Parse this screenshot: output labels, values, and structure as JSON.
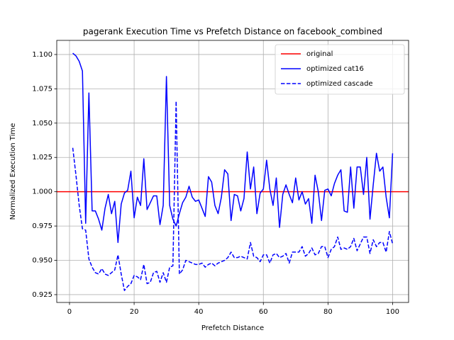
{
  "chart_data": {
    "type": "line",
    "title": "pagerank Execution Time vs Prefetch Distance on facebook_combined",
    "x_label": "Prefetch Distance",
    "y_label": "Normalized Execution Time",
    "xlim": [
      -3.95,
      104.95
    ],
    "ylim": [
      0.9193,
      1.1103
    ],
    "xticks": [
      0,
      20,
      40,
      60,
      80,
      100
    ],
    "yticks": [
      0.925,
      {
        "value": 0.95,
        "label": "0.950"
      },
      0.975,
      {
        "value": 1.0,
        "label": "1.000"
      },
      1.025,
      {
        "value": 1.05,
        "label": "1.050"
      },
      1.075,
      {
        "value": 1.1,
        "label": "1.100"
      }
    ],
    "grid": true,
    "legend": "upper right",
    "x": [
      1,
      2,
      3,
      4,
      5,
      6,
      7,
      8,
      9,
      10,
      11,
      12,
      13,
      14,
      15,
      16,
      17,
      18,
      19,
      20,
      21,
      22,
      23,
      24,
      25,
      26,
      27,
      28,
      29,
      30,
      31,
      32,
      33,
      34,
      35,
      36,
      37,
      38,
      39,
      40,
      41,
      42,
      43,
      44,
      45,
      46,
      47,
      48,
      49,
      50,
      51,
      52,
      53,
      54,
      55,
      56,
      57,
      58,
      59,
      60,
      61,
      62,
      63,
      64,
      65,
      66,
      67,
      68,
      69,
      70,
      71,
      72,
      73,
      74,
      75,
      76,
      77,
      78,
      79,
      80,
      81,
      82,
      83,
      84,
      85,
      86,
      87,
      88,
      89,
      90,
      91,
      92,
      93,
      94,
      95,
      96,
      97,
      98,
      99,
      100
    ],
    "series": [
      {
        "name": "original",
        "color": "#ff0000",
        "axhline": 1.0
      },
      {
        "name": "optimized cat16",
        "color": "#0000ff",
        "dash": false,
        "values": [
          1.101,
          1.099,
          1.095,
          1.088,
          0.977,
          1.072,
          0.986,
          0.986,
          0.98,
          0.972,
          0.988,
          0.998,
          0.984,
          0.993,
          0.963,
          0.991,
          0.999,
          1.001,
          1.015,
          0.981,
          0.996,
          0.99,
          1.024,
          0.987,
          0.992,
          0.997,
          0.997,
          0.976,
          0.99,
          1.084,
          0.99,
          0.98,
          0.975,
          0.984,
          0.992,
          0.996,
          1.004,
          0.996,
          0.993,
          0.994,
          0.988,
          0.982,
          1.011,
          1.007,
          0.99,
          0.984,
          0.996,
          1.016,
          1.013,
          0.979,
          0.998,
          0.997,
          0.986,
          0.995,
          1.029,
          1.002,
          1.018,
          0.984,
          0.999,
          1.002,
          1.023,
          1.002,
          0.99,
          1.01,
          0.974,
          0.998,
          1.005,
          0.998,
          0.992,
          1.01,
          0.994,
          1.0,
          0.991,
          0.995,
          0.977,
          1.012,
          1.0,
          0.979,
          1.001,
          1.002,
          0.997,
          1.006,
          1.012,
          1.016,
          0.986,
          0.985,
          1.018,
          0.988,
          1.018,
          1.018,
          0.998,
          1.025,
          0.98,
          1.005,
          1.028,
          1.015,
          1.018,
          0.996,
          0.981,
          1.028
        ]
      },
      {
        "name": "optimized cascade",
        "color": "#0000ff",
        "dash": true,
        "values": [
          1.032,
          1.012,
          0.99,
          0.973,
          0.972,
          0.951,
          0.945,
          0.941,
          0.94,
          0.944,
          0.94,
          0.939,
          0.941,
          0.943,
          0.954,
          0.94,
          0.928,
          0.931,
          0.933,
          0.939,
          0.938,
          0.936,
          0.947,
          0.933,
          0.934,
          0.941,
          0.942,
          0.934,
          0.941,
          0.934,
          0.945,
          0.946,
          1.066,
          0.94,
          0.943,
          0.95,
          0.949,
          0.948,
          0.947,
          0.947,
          0.948,
          0.945,
          0.947,
          0.948,
          0.946,
          0.948,
          0.949,
          0.95,
          0.952,
          0.956,
          0.952,
          0.952,
          0.953,
          0.952,
          0.951,
          0.963,
          0.953,
          0.952,
          0.949,
          0.954,
          0.954,
          0.948,
          0.954,
          0.955,
          0.952,
          0.953,
          0.955,
          0.948,
          0.956,
          0.956,
          0.956,
          0.96,
          0.953,
          0.955,
          0.959,
          0.954,
          0.955,
          0.96,
          0.96,
          0.952,
          0.958,
          0.96,
          0.967,
          0.958,
          0.959,
          0.958,
          0.96,
          0.966,
          0.957,
          0.962,
          0.967,
          0.967,
          0.955,
          0.965,
          0.96,
          0.963,
          0.963,
          0.956,
          0.971,
          0.962
        ]
      }
    ]
  }
}
